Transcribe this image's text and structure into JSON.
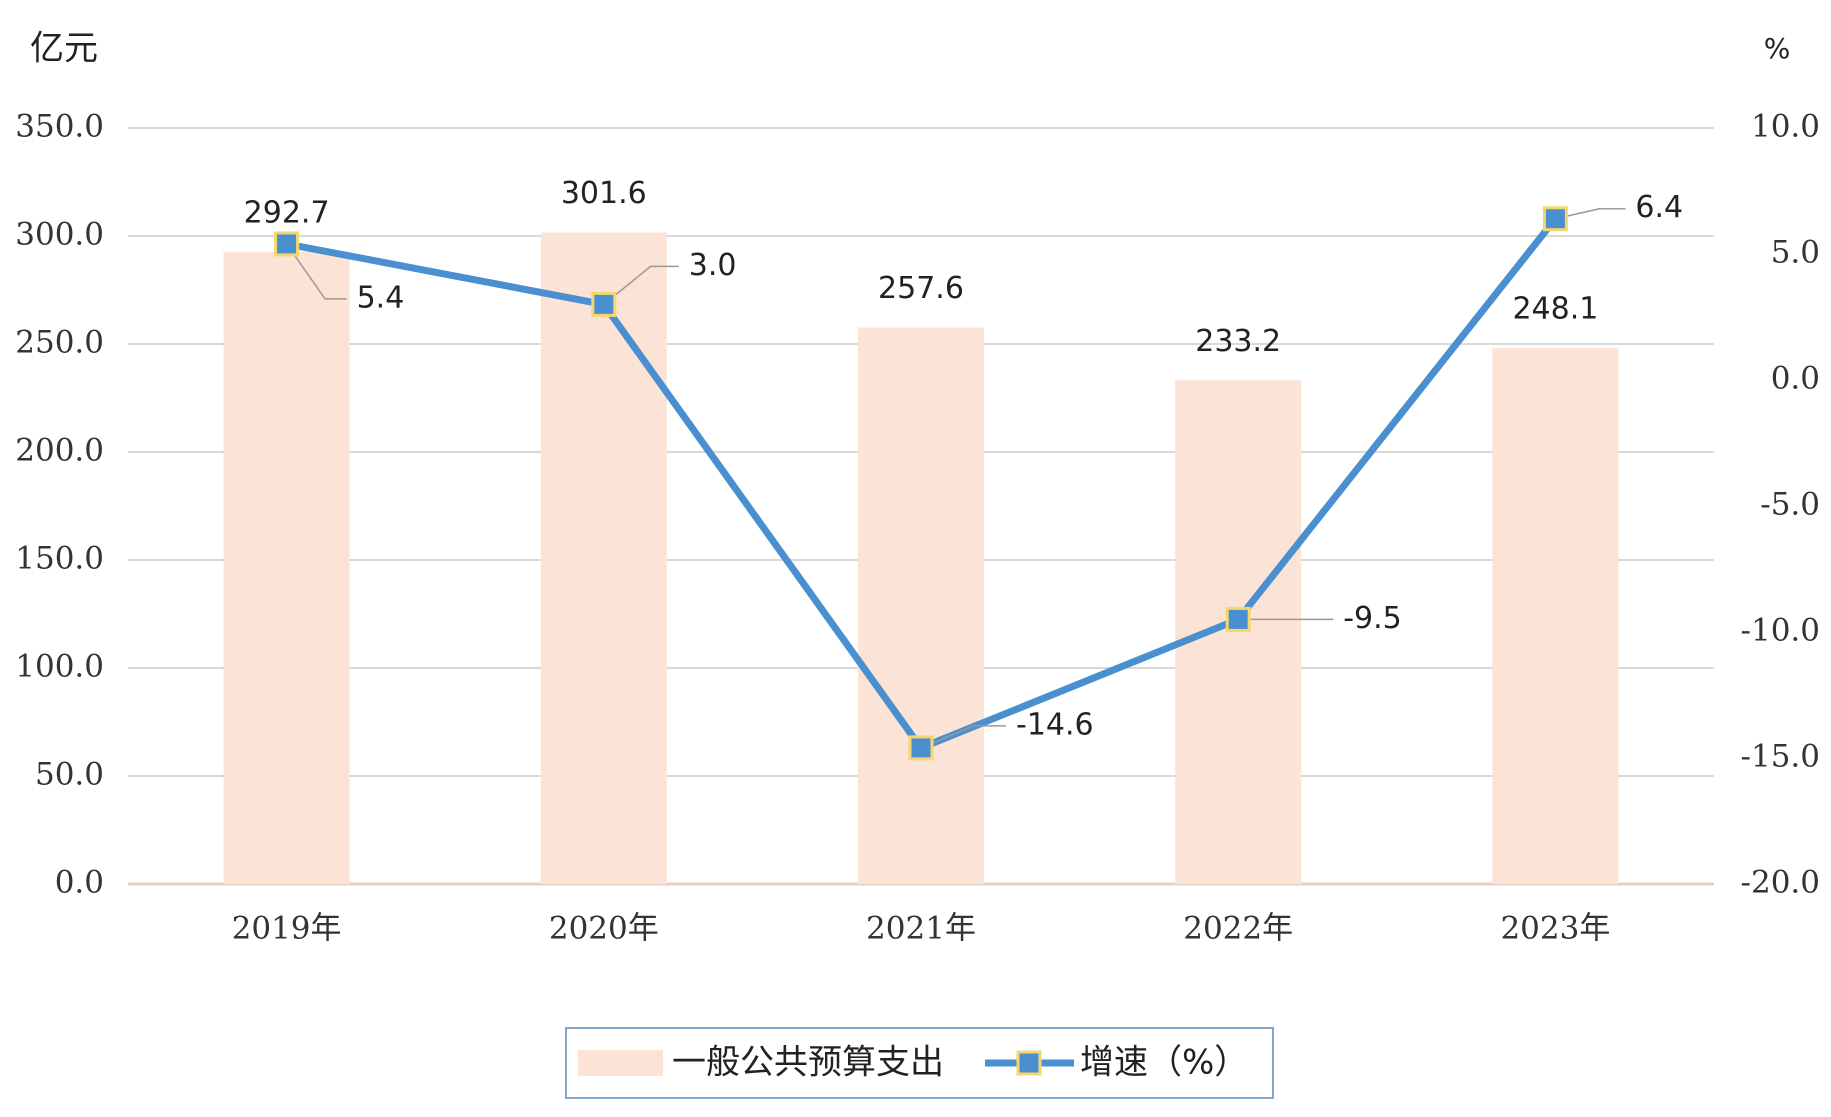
{
  "chart_data": {
    "type": "bar-line",
    "y_label": "亿元",
    "y2_label": "%",
    "categories": [
      "2019年",
      "2020年",
      "2021年",
      "2022年",
      "2023年"
    ],
    "series": [
      {
        "name": "一般公共预算支出",
        "type": "bar",
        "color": "#fbe3d6",
        "values": [
          292.7,
          301.6,
          257.6,
          233.2,
          248.1
        ]
      },
      {
        "name": "增速（%）",
        "type": "line",
        "axis": "y2",
        "color": "#4a90d0",
        "marker_color": "#f5d76e",
        "values": [
          5.4,
          3.0,
          -14.6,
          -9.5,
          6.4
        ],
        "value_labels": [
          "5.4",
          "3.0",
          "-14.6",
          "-9.5",
          "6.4"
        ]
      }
    ],
    "ylim": [
      0,
      350
    ],
    "yticks": [
      {
        "value": 0,
        "label": "0.0"
      },
      {
        "value": 50,
        "label": "50.0"
      },
      {
        "value": 100,
        "label": "100.0"
      },
      {
        "value": 150,
        "label": "150.0"
      },
      {
        "value": 200,
        "label": "200.0"
      },
      {
        "value": 250,
        "label": "250.0"
      },
      {
        "value": 300,
        "label": "300.0"
      },
      {
        "value": 350,
        "label": "350.0"
      }
    ],
    "y2lim": [
      -20,
      10
    ],
    "y2ticks": [
      {
        "value": -20,
        "label": "-20.0"
      },
      {
        "value": -15,
        "label": "-15.0"
      },
      {
        "value": -10,
        "label": "-10.0"
      },
      {
        "value": -5,
        "label": "-5.0"
      },
      {
        "value": 0,
        "label": "0.0"
      },
      {
        "value": 5,
        "label": "5.0"
      },
      {
        "value": 10,
        "label": "10.0"
      }
    ],
    "grid": true,
    "legend": "bottom"
  }
}
